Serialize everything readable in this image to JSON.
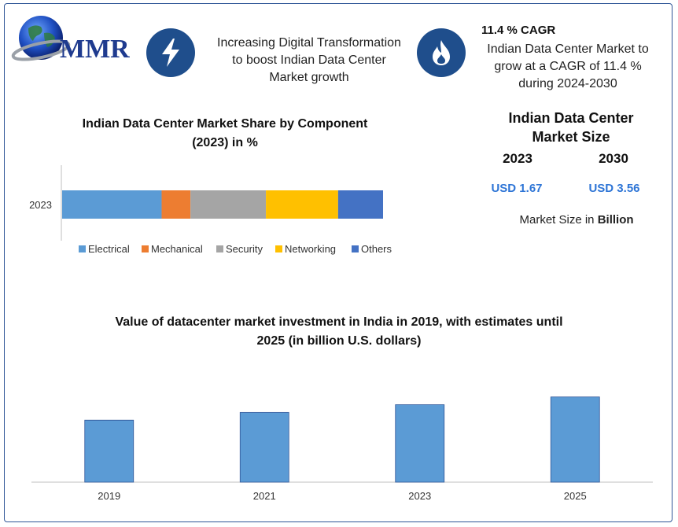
{
  "header": {
    "logo_text": "MMR",
    "feature1_text_lines": [
      "Increasing Digital Transformation",
      "to boost Indian Data Center",
      "Market growth"
    ],
    "feature1_icon": "lightning-bolt-icon",
    "feature2_icon": "flame-icon",
    "cagr_title": "11.4 % CAGR",
    "cagr_text_lines": [
      "Indian Data Center Market to",
      "grow at a CAGR of 11.4 %",
      "during 2024-2030"
    ]
  },
  "market_size": {
    "title_lines": [
      "Indian Data Center",
      "Market Size"
    ],
    "year_a": "2023",
    "year_b": "2030",
    "value_a": "USD 1.67",
    "value_b": "USD 3.56",
    "unit_prefix": "Market Size in ",
    "unit_bold": "Billion"
  },
  "colors": {
    "frame": "#2f5597",
    "icon_bg": "#1f4e8c",
    "value_blue": "#2e75d6",
    "bar_blue": "#5b9bd5"
  },
  "chart_data": [
    {
      "type": "bar",
      "orientation": "horizontal-stacked",
      "title_lines": [
        "Indian Data Center Market Share by Component",
        "(2023) in %"
      ],
      "categories": [
        "2023"
      ],
      "series": [
        {
          "name": "Electrical",
          "values": [
            31
          ],
          "color": "#5b9bd5"
        },
        {
          "name": "Mechanical",
          "values": [
            9
          ],
          "color": "#ed7d31"
        },
        {
          "name": "Security",
          "values": [
            23.5
          ],
          "color": "#a5a5a5"
        },
        {
          "name": "Networking",
          "values": [
            22.5
          ],
          "color": "#ffc000"
        },
        {
          "name": "Others",
          "values": [
            14
          ],
          "color": "#4472c4"
        }
      ],
      "legend": "bottom",
      "grid": false
    },
    {
      "type": "bar",
      "title_lines": [
        "Value of datacenter market investment in India in 2019, with estimates until",
        "2025 (in billion U.S. dollars)"
      ],
      "categories": [
        "2019",
        "2021",
        "2023",
        "2025"
      ],
      "values": [
        2.0,
        2.25,
        2.5,
        2.75
      ],
      "ylim": [
        0,
        3.3
      ],
      "grid": false,
      "color": "#5b9bd5"
    }
  ]
}
